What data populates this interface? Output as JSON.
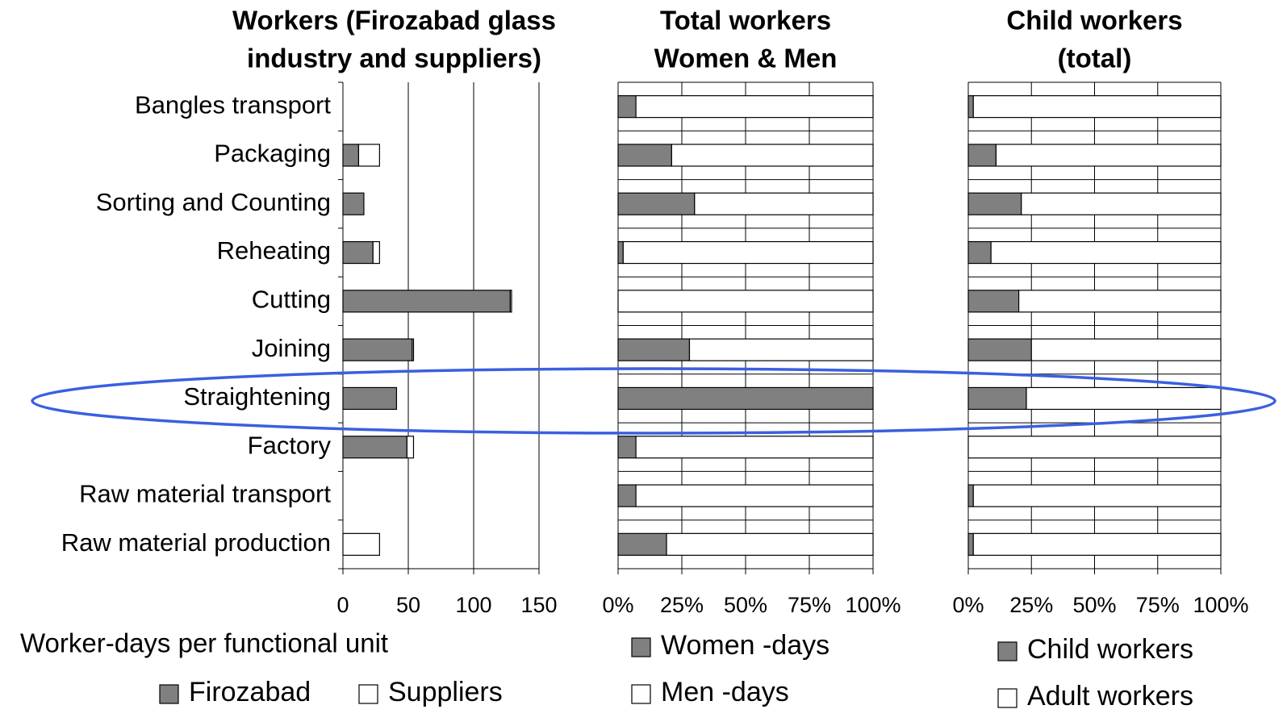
{
  "chart_data": [
    {
      "type": "bar",
      "stacked": true,
      "orientation": "horizontal",
      "title": [
        "Workers (Firozabad glass",
        "industry and suppliers)"
      ],
      "x_label": "Worker-days per functional unit",
      "categories": [
        "Bangles transport",
        "Packaging",
        "Sorting and Counting",
        "Reheating",
        "Cutting",
        "Joining",
        "Straightening",
        "Factory",
        "Raw material transport",
        "Raw material production"
      ],
      "series": [
        {
          "name": "Firozabad",
          "color": "#808080",
          "values": [
            0,
            12,
            16,
            23,
            128,
            53,
            41,
            49,
            0,
            0
          ]
        },
        {
          "name": "Suppliers",
          "color": "#ffffff",
          "values": [
            0,
            16,
            0,
            5,
            1,
            1,
            0,
            5,
            0,
            28
          ]
        }
      ],
      "xlim": [
        0,
        150
      ],
      "xticks": [
        0,
        50,
        100,
        150
      ],
      "grid": true
    },
    {
      "type": "bar",
      "stacked": true,
      "orientation": "horizontal",
      "title": [
        "Total workers",
        "Women & Men"
      ],
      "series": [
        {
          "name": "Women -days",
          "color": "#808080",
          "values": [
            7,
            21,
            30,
            2,
            0,
            28,
            100,
            7,
            7,
            19
          ]
        },
        {
          "name": "Men -days",
          "color": "#ffffff",
          "values": [
            93,
            79,
            70,
            98,
            100,
            72,
            0,
            93,
            93,
            81
          ]
        }
      ],
      "xlim": [
        0,
        100
      ],
      "xticks": [
        {
          "value": 0,
          "label": "0%"
        },
        {
          "value": 25,
          "label": "25%"
        },
        {
          "value": 50,
          "label": "50%"
        },
        {
          "value": 75,
          "label": "75%"
        },
        {
          "value": 100,
          "label": "100%"
        }
      ],
      "grid": true
    },
    {
      "type": "bar",
      "stacked": true,
      "orientation": "horizontal",
      "title": [
        "Child workers",
        "(total)"
      ],
      "series": [
        {
          "name": "Child workers",
          "color": "#808080",
          "values": [
            2,
            11,
            21,
            9,
            20,
            25,
            23,
            0,
            2,
            2
          ]
        },
        {
          "name": "Adult workers",
          "color": "#ffffff",
          "values": [
            98,
            89,
            79,
            91,
            80,
            75,
            77,
            100,
            98,
            98
          ]
        }
      ],
      "xlim": [
        0,
        100
      ],
      "xticks": [
        {
          "value": 0,
          "label": "0%"
        },
        {
          "value": 25,
          "label": "25%"
        },
        {
          "value": 50,
          "label": "50%"
        },
        {
          "value": 75,
          "label": "75%"
        },
        {
          "value": 100,
          "label": "100%"
        }
      ],
      "grid": true
    }
  ]
}
